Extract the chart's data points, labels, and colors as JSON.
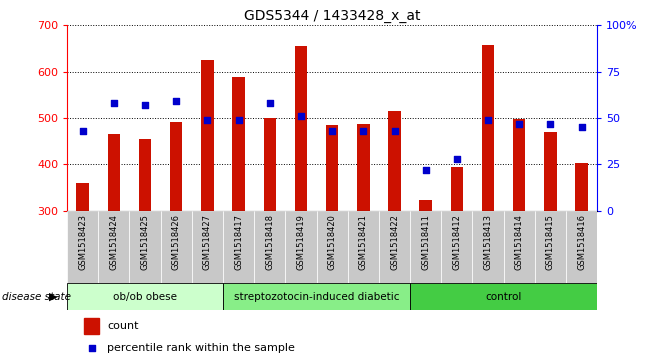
{
  "title": "GDS5344 / 1433428_x_at",
  "samples": [
    "GSM1518423",
    "GSM1518424",
    "GSM1518425",
    "GSM1518426",
    "GSM1518427",
    "GSM1518417",
    "GSM1518418",
    "GSM1518419",
    "GSM1518420",
    "GSM1518421",
    "GSM1518422",
    "GSM1518411",
    "GSM1518412",
    "GSM1518413",
    "GSM1518414",
    "GSM1518415",
    "GSM1518416"
  ],
  "counts": [
    360,
    465,
    455,
    492,
    625,
    588,
    500,
    655,
    485,
    488,
    515,
    322,
    395,
    658,
    497,
    470,
    403
  ],
  "percentiles": [
    43,
    58,
    57,
    59,
    49,
    49,
    58,
    51,
    43,
    43,
    43,
    22,
    28,
    49,
    47,
    47,
    45
  ],
  "groups": [
    {
      "label": "ob/ob obese",
      "start": 0,
      "end": 5,
      "color": "#ccffcc"
    },
    {
      "label": "streptozotocin-induced diabetic",
      "start": 5,
      "end": 11,
      "color": "#88ee88"
    },
    {
      "label": "control",
      "start": 11,
      "end": 17,
      "color": "#44cc44"
    }
  ],
  "bar_color": "#cc1100",
  "dot_color": "#0000cc",
  "ymin": 300,
  "ymax": 700,
  "yticks": [
    300,
    400,
    500,
    600,
    700
  ],
  "y2min": 0,
  "y2max": 100,
  "y2ticks": [
    0,
    25,
    50,
    75,
    100
  ],
  "y2ticklabels": [
    "0",
    "25",
    "50",
    "75",
    "100%"
  ],
  "plot_bg": "#ffffff",
  "tick_bg": "#c8c8c8",
  "bar_width": 0.4
}
